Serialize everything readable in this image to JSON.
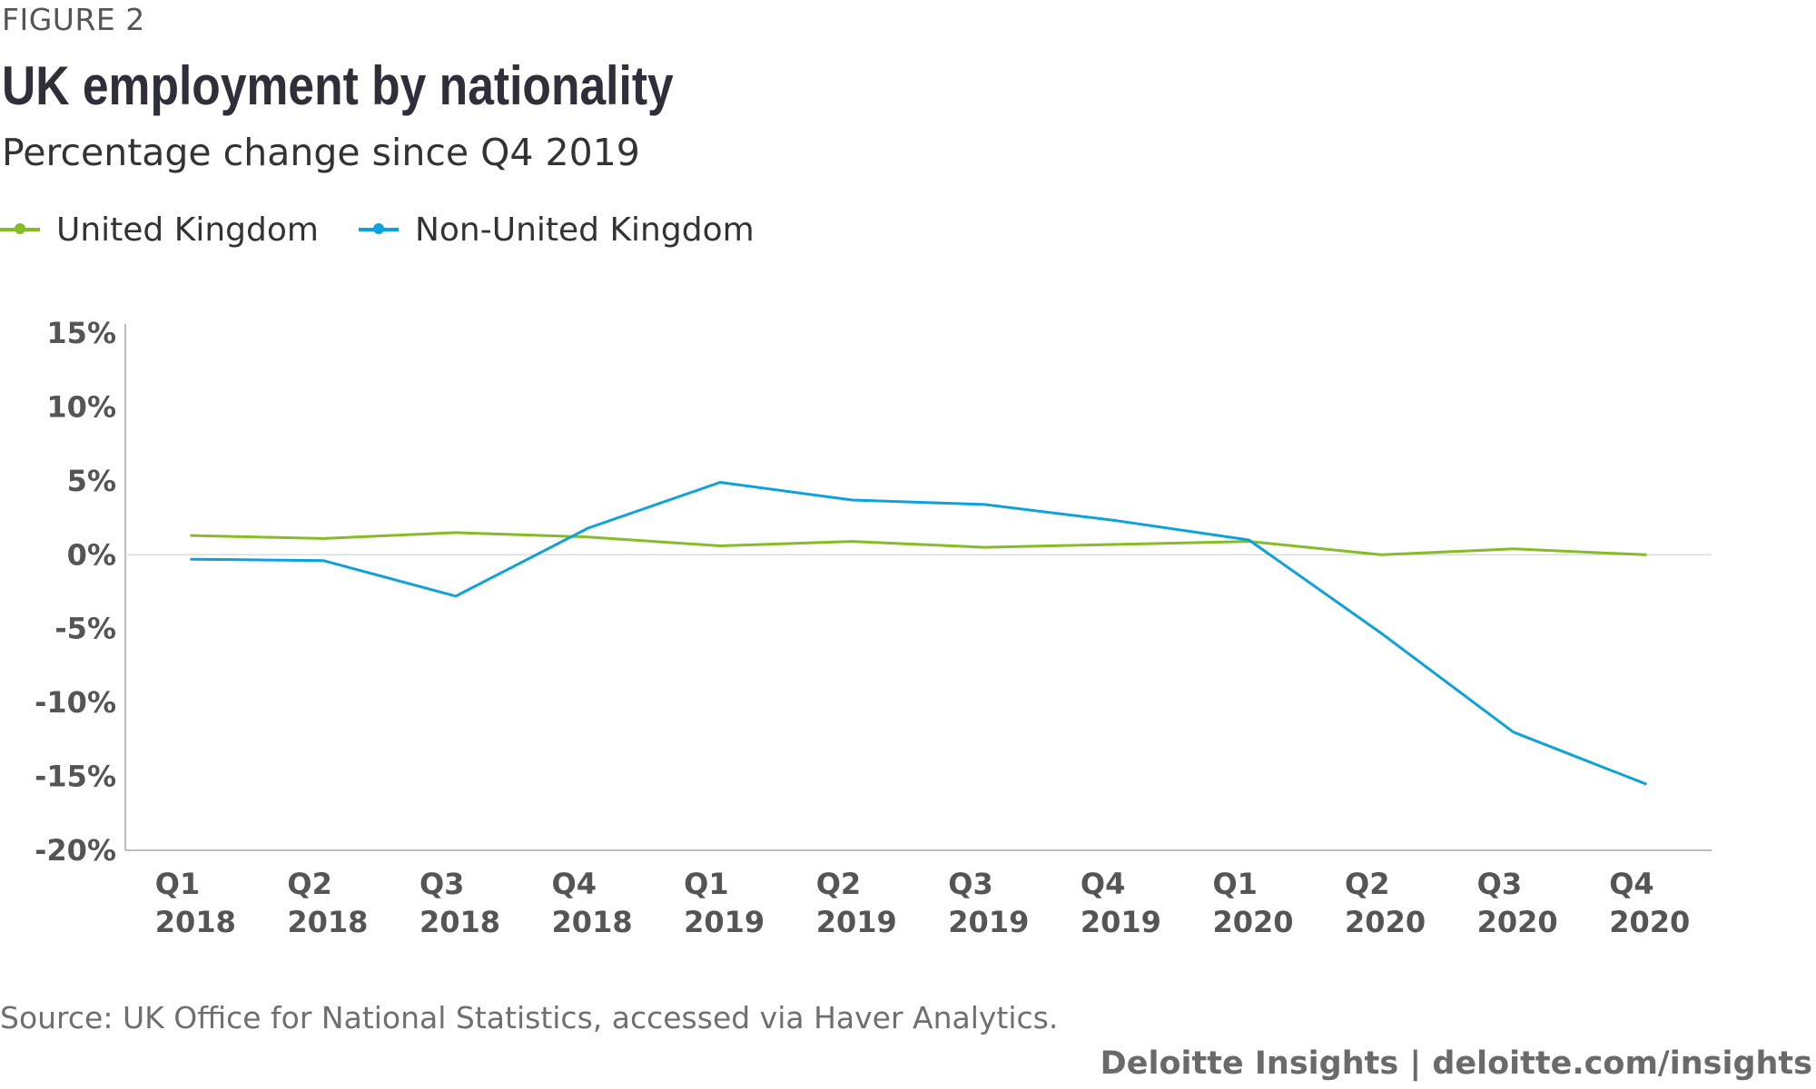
{
  "figure_label": "FIGURE 2",
  "chart_data": {
    "type": "line",
    "title": "UK employment by nationality",
    "subtitle": "Percentage change since Q4 2019",
    "categories": [
      [
        "Q1",
        "2018"
      ],
      [
        "Q2",
        "2018"
      ],
      [
        "Q3",
        "2018"
      ],
      [
        "Q4",
        "2018"
      ],
      [
        "Q1",
        "2019"
      ],
      [
        "Q2",
        "2019"
      ],
      [
        "Q3",
        "2019"
      ],
      [
        "Q4",
        "2019"
      ],
      [
        "Q1",
        "2020"
      ],
      [
        "Q2",
        "2020"
      ],
      [
        "Q3",
        "2020"
      ],
      [
        "Q4",
        "2020"
      ]
    ],
    "series": [
      {
        "name": "United Kingdom",
        "color": "#86bc25",
        "values": [
          1.3,
          1.1,
          1.5,
          1.2,
          0.6,
          0.9,
          0.5,
          0.7,
          0.9,
          0.0,
          0.4,
          0.0
        ]
      },
      {
        "name": "Non-United Kingdom",
        "color": "#0da2dc",
        "values": [
          -0.3,
          -0.4,
          -2.8,
          1.8,
          4.9,
          3.7,
          3.4,
          2.3,
          1.0,
          -5.3,
          -12.0,
          -15.5
        ]
      }
    ],
    "ylim": [
      -20,
      15
    ],
    "yticks": [
      15,
      10,
      5,
      0,
      -5,
      -10,
      -15,
      -20
    ],
    "ytick_labels": [
      "15%",
      "10%",
      "5%",
      "0%",
      "-5%",
      "-10%",
      "-15%",
      "-20%"
    ],
    "xlabel": "",
    "ylabel": "",
    "grid": false,
    "zero_line": true,
    "legend_position": "top-left"
  },
  "source": "Source: UK Office for National Statistics, accessed via Haver Analytics.",
  "branding": "Deloitte Insights | deloitte.com/insights"
}
